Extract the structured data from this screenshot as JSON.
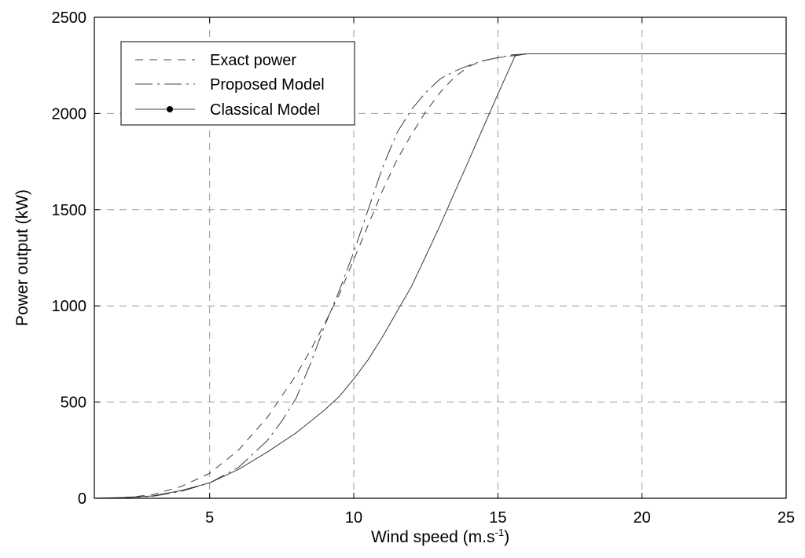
{
  "chart_data": {
    "type": "line",
    "xlabel": "Wind speed (m.s",
    "xlabel_sup": "-1",
    "xlabel_close": ")",
    "ylabel": "Power output (kW)",
    "xlim": [
      1,
      25
    ],
    "ylim": [
      0,
      2500
    ],
    "xticks": [
      5,
      10,
      15,
      20,
      25
    ],
    "yticks": [
      0,
      500,
      1000,
      1500,
      2000,
      2500
    ],
    "grid": true,
    "legend_position": "top-left",
    "series": [
      {
        "name": "Exact power",
        "style": "dashed",
        "x": [
          1,
          2,
          3,
          4,
          5,
          6,
          7,
          8,
          8.5,
          9,
          9.5,
          10,
          10.5,
          11,
          11.5,
          12,
          12.5,
          13,
          13.5,
          14,
          14.5,
          15,
          15.5,
          16,
          18,
          25
        ],
        "y": [
          0,
          3,
          18,
          60,
          130,
          250,
          420,
          640,
          770,
          910,
          1060,
          1240,
          1420,
          1600,
          1760,
          1890,
          2010,
          2110,
          2190,
          2245,
          2275,
          2290,
          2300,
          2310,
          2310,
          2310
        ]
      },
      {
        "name": "Proposed Model",
        "style": "dashdot",
        "x": [
          1,
          2,
          3,
          4,
          5,
          6,
          7,
          7.5,
          8,
          8.5,
          9,
          9.5,
          10,
          10.5,
          11,
          11.5,
          12,
          12.5,
          13,
          13.5,
          14,
          14.5,
          15,
          15.5,
          16,
          18,
          25
        ],
        "y": [
          0,
          3,
          10,
          35,
          80,
          160,
          300,
          400,
          520,
          700,
          900,
          1080,
          1280,
          1500,
          1720,
          1900,
          2020,
          2110,
          2180,
          2220,
          2250,
          2275,
          2290,
          2305,
          2310,
          2310,
          2310
        ]
      },
      {
        "name": "Classical Model",
        "style": "solid",
        "x": [
          1,
          2,
          3,
          4,
          5,
          6,
          7,
          8,
          9,
          9.5,
          10,
          10.5,
          11,
          11.5,
          12,
          12.5,
          13,
          13.5,
          14,
          14.5,
          15,
          15.3,
          15.6,
          16,
          18,
          25
        ],
        "y": [
          0,
          4,
          12,
          40,
          80,
          150,
          240,
          340,
          460,
          530,
          620,
          720,
          840,
          970,
          1100,
          1260,
          1420,
          1590,
          1760,
          1930,
          2100,
          2200,
          2300,
          2310,
          2310,
          2310
        ]
      }
    ]
  }
}
